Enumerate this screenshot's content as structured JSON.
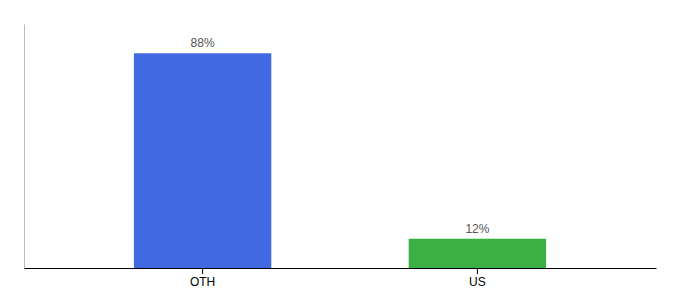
{
  "chart_data": {
    "type": "bar",
    "categories": [
      "OTH",
      "US"
    ],
    "values": [
      88,
      12
    ],
    "value_labels": [
      "88%",
      "12%"
    ],
    "colors": [
      "#4169e1",
      "#3cb043"
    ],
    "ylim": [
      0,
      100
    ],
    "grid": false,
    "data_labels": true,
    "tick_labels": "x"
  }
}
